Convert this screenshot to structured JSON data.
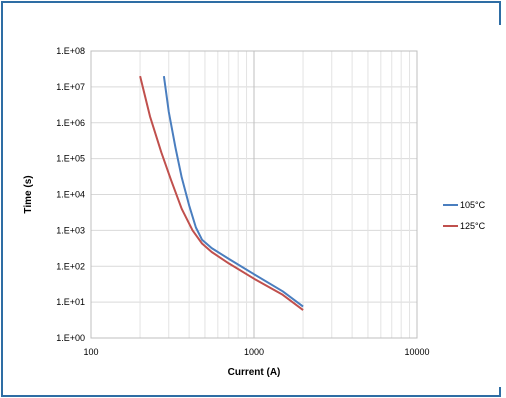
{
  "chart_data": {
    "type": "line",
    "title": "",
    "xlabel": "Current (A)",
    "ylabel": "Time (s)",
    "x_scale": "log",
    "y_scale": "log",
    "xlim": [
      100,
      10000
    ],
    "ylim": [
      1,
      100000000
    ],
    "x_ticks": [
      {
        "value": 100,
        "label": "100"
      },
      {
        "value": 1000,
        "label": "1000"
      },
      {
        "value": 10000,
        "label": "10000"
      }
    ],
    "y_ticks": [
      {
        "value": 1,
        "label": "1.E+00"
      },
      {
        "value": 10,
        "label": "1.E+01"
      },
      {
        "value": 100,
        "label": "1.E+02"
      },
      {
        "value": 1000,
        "label": "1.E+03"
      },
      {
        "value": 10000,
        "label": "1.E+04"
      },
      {
        "value": 100000,
        "label": "1.E+05"
      },
      {
        "value": 1000000,
        "label": "1.E+06"
      },
      {
        "value": 10000000,
        "label": "1.E+07"
      },
      {
        "value": 100000000,
        "label": "1.E+08"
      }
    ],
    "grid": true,
    "legend_position": "right",
    "series": [
      {
        "name": "105°C",
        "color": "#4a7ebf",
        "points": [
          [
            280,
            20000000
          ],
          [
            300,
            2000000
          ],
          [
            330,
            200000
          ],
          [
            360,
            30000
          ],
          [
            400,
            5000
          ],
          [
            440,
            1200
          ],
          [
            480,
            550
          ],
          [
            550,
            320
          ],
          [
            700,
            160
          ],
          [
            1000,
            60
          ],
          [
            1500,
            20
          ],
          [
            2000,
            7.5
          ]
        ]
      },
      {
        "name": "125°C",
        "color": "#c0504d",
        "points": [
          [
            200,
            20000000
          ],
          [
            230,
            1500000
          ],
          [
            270,
            150000
          ],
          [
            310,
            25000
          ],
          [
            360,
            4000
          ],
          [
            420,
            1000
          ],
          [
            480,
            430
          ],
          [
            550,
            250
          ],
          [
            700,
            120
          ],
          [
            1000,
            45
          ],
          [
            1500,
            16
          ],
          [
            2000,
            6
          ]
        ]
      }
    ]
  }
}
